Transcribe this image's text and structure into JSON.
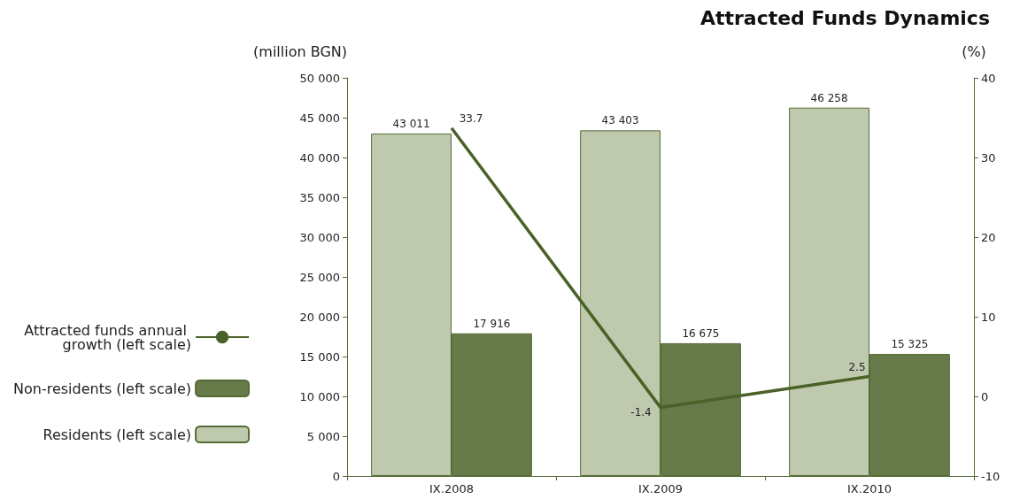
{
  "chart_data": {
    "type": "bar",
    "title": "Attracted Funds Dynamics",
    "ylabel": "(million BGN)",
    "y2label": "(%)",
    "categories": [
      "IX.2008",
      "IX.2009",
      "IX.2010"
    ],
    "series": [
      {
        "name": "Residents (left scale)",
        "color": "#bfc9ad",
        "values": [
          43011,
          43403,
          46258
        ],
        "value_labels": [
          "43 011",
          "43 403",
          "46 258"
        ]
      },
      {
        "name": "Non-residents (left scale)",
        "color": "#667a4a",
        "values": [
          17916,
          16675,
          15325
        ],
        "value_labels": [
          "17 916",
          "16 675",
          "15 325"
        ]
      },
      {
        "name": "Attracted funds annual growth (left scale)",
        "type": "line",
        "axis": "y2",
        "color": "#4a6128",
        "values": [
          33.7,
          -1.4,
          2.5
        ],
        "value_labels": [
          "33.7",
          "-1.4",
          "2.5"
        ],
        "marker": "none"
      }
    ],
    "ylim": [
      0,
      50000
    ],
    "yticks": [
      {
        "value": 0,
        "label": "0"
      },
      {
        "value": 5000,
        "label": "5 000"
      },
      {
        "value": 10000,
        "label": "10 000"
      },
      {
        "value": 15000,
        "label": "15 000"
      },
      {
        "value": 20000,
        "label": "20 000"
      },
      {
        "value": 25000,
        "label": "25 000"
      },
      {
        "value": 30000,
        "label": "30 000"
      },
      {
        "value": 35000,
        "label": "35 000"
      },
      {
        "value": 40000,
        "label": "40 000"
      },
      {
        "value": 45000,
        "label": "45 000"
      },
      {
        "value": 50000,
        "label": "50 000"
      }
    ],
    "y2lim": [
      -10,
      40
    ],
    "y2ticks": [
      -10,
      0,
      10,
      20,
      30,
      40
    ],
    "legend": "left",
    "grid": false
  }
}
